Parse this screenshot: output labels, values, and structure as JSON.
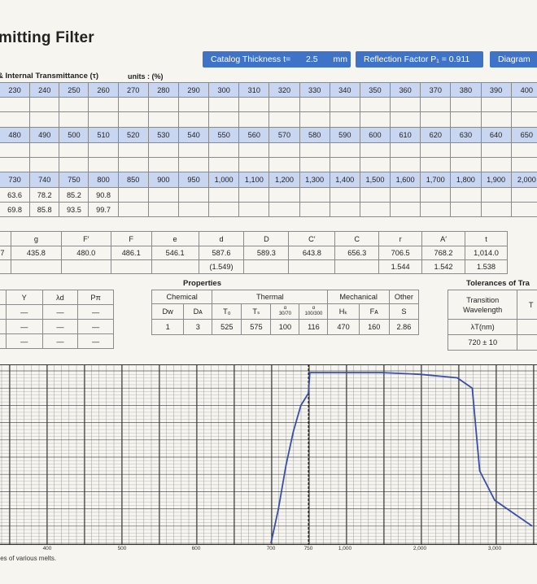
{
  "title": "mitting Filter",
  "pills": {
    "thickness_label": "Catalog Thickness  t=",
    "thickness_value": "2.5",
    "thickness_unit": "mm",
    "reflection": "Reflection Factor  P₁ = 0.911",
    "diagram": "Diagram"
  },
  "transmittance": {
    "heading": "& Internal Transmittance (τ)",
    "units": "units : (%)",
    "block1_header": [
      "230",
      "240",
      "250",
      "260",
      "270",
      "280",
      "290",
      "300",
      "310",
      "320",
      "330",
      "340",
      "350",
      "360",
      "370",
      "380",
      "390",
      "400"
    ],
    "block2_header": [
      "480",
      "490",
      "500",
      "510",
      "520",
      "530",
      "540",
      "550",
      "560",
      "570",
      "580",
      "590",
      "600",
      "610",
      "620",
      "630",
      "640",
      "650"
    ],
    "block3_header": [
      "730",
      "740",
      "750",
      "800",
      "850",
      "900",
      "950",
      "1,000",
      "1,100",
      "1,200",
      "1,300",
      "1,400",
      "1,500",
      "1,600",
      "1,700",
      "1,800",
      "1,900",
      "2,000"
    ],
    "block3_row1": [
      "63.6",
      "78.2",
      "85.2",
      "90.8",
      "",
      "",
      "",
      "",
      "",
      "",
      "",
      "",
      "",
      "",
      "",
      "",
      "",
      ""
    ],
    "block3_row2": [
      "69.8",
      "85.8",
      "93.5",
      "99.7",
      "",
      "",
      "",
      "",
      "",
      "",
      "",
      "",
      "",
      "",
      "",
      "",
      "",
      ""
    ]
  },
  "lines": {
    "header": [
      "",
      "g",
      "F′",
      "F",
      "e",
      "d",
      "D",
      "C′",
      "C",
      "r",
      "A′",
      "t"
    ],
    "row1": [
      "7",
      "435.8",
      "480.0",
      "486.1",
      "546.1",
      "587.6",
      "589.3",
      "643.8",
      "656.3",
      "706.5",
      "768.2",
      "1,014.0"
    ],
    "row2": [
      "",
      "",
      "",
      "",
      "",
      "(1.549)",
      "",
      "",
      "",
      "1.544",
      "1.542",
      "1.538"
    ]
  },
  "misc": {
    "header": [
      "",
      "Y",
      "λd",
      "Pπ"
    ],
    "row1": [
      "",
      "—",
      "—",
      "—"
    ],
    "row2": [
      "",
      "—",
      "—",
      "—"
    ],
    "row3": [
      "",
      "—",
      "—",
      "—"
    ]
  },
  "properties": {
    "heading": "Properties",
    "groups": {
      "chemical": "Chemical",
      "thermal": "Thermal",
      "mechanical": "Mechanical",
      "other": "Other"
    },
    "col_dw": "Dᴡ",
    "col_da": "Dᴀ",
    "col_t0": "T₀",
    "col_ts": "Tₛ",
    "col_a1_top": "α",
    "col_a1_bot": "30/70",
    "col_a2_top": "α",
    "col_a2_bot": "100/300",
    "col_hk": "Hₖ",
    "col_fa": "Fᴀ",
    "col_s": "S",
    "values": [
      "1",
      "3",
      "525",
      "575",
      "100",
      "116",
      "470",
      "160",
      "2.86"
    ]
  },
  "tolerances": {
    "heading": "Tolerances of Tra",
    "col1": "Transition Wavelength",
    "col2": "T",
    "row1": "λT(nm)",
    "row2": "720 ± 10"
  },
  "graph": {
    "note": "lues of various melts.",
    "x_ticks": [
      "400",
      "500",
      "600",
      "700",
      "750",
      "1,000",
      "2,000",
      "3,000"
    ]
  },
  "chart_data": {
    "type": "line",
    "xlabel": "",
    "ylabel": "",
    "x_ticks": [
      "400",
      "500",
      "600",
      "700",
      "750",
      "1,000",
      "2,000",
      "3,000"
    ],
    "series": [
      {
        "x": [
          700,
          710,
          720,
          730,
          740,
          750,
          760,
          800,
          1000,
          1500,
          2000,
          2500,
          2700,
          2800,
          3000,
          3500
        ],
        "y": [
          0,
          20,
          45,
          65,
          80,
          87,
          99,
          99,
          99,
          99,
          98,
          96,
          90,
          42,
          25,
          10
        ]
      }
    ],
    "colors": {
      "curve": "#3a4ea8",
      "grid": "#333333"
    }
  }
}
